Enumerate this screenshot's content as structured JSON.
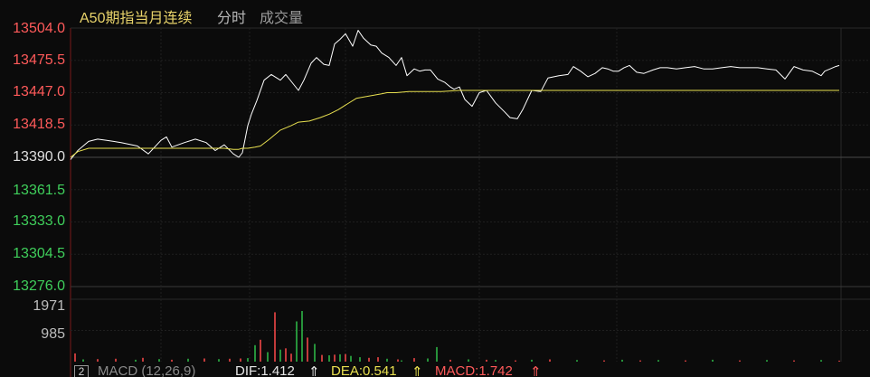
{
  "header": {
    "title": "A50期指当月连续",
    "tabs": [
      {
        "label": "分时"
      },
      {
        "label": "成交量"
      }
    ]
  },
  "price_axis": {
    "labels": [
      "13504.0",
      "13475.5",
      "13447.0",
      "13418.5",
      "13390.0",
      "13361.5",
      "13333.0",
      "13304.5",
      "13276.0"
    ],
    "up_color": "#ff5a5a",
    "ref_color": "#e0e0e0",
    "down_color": "#3fcf5b"
  },
  "volume_axis": {
    "labels": [
      "1971",
      "985"
    ]
  },
  "bottom_bar": {
    "period_button": "2",
    "macd_label": "MACD (12,26,9)",
    "dif_label": "DIF:1.412",
    "dea_label": "DEA:0.541",
    "macd_value_label": "MACD:1.742",
    "up_arrow": "⇑"
  },
  "chart_data": [
    {
      "type": "line",
      "series": [
        {
          "color": "#ffffff",
          "x": [
            0,
            8,
            20,
            30,
            40,
            56,
            74,
            86,
            100,
            106,
            112,
            126,
            138,
            150,
            160,
            170,
            180,
            186,
            190,
            196,
            200,
            206,
            214,
            222,
            232,
            238,
            244,
            252,
            258,
            266,
            272,
            280,
            286,
            292,
            298,
            304,
            312,
            318,
            324,
            332,
            338,
            344,
            352,
            360,
            366,
            372,
            380,
            386,
            392,
            398,
            406,
            414,
            420,
            424,
            430,
            436,
            444,
            452,
            460,
            470,
            480,
            486,
            494,
            500,
            510,
            520,
            528,
            540,
            550,
            556,
            564,
            572,
            580,
            588,
            594,
            600,
            606,
            612,
            618,
            626,
            634,
            644,
            652,
            660,
            670,
            680,
            690,
            700,
            710,
            720,
            730,
            740,
            750,
            760,
            770,
            780,
            790,
            800,
            810,
            820,
            830,
            834,
            840,
            846,
            850
          ],
          "y": [
            13388,
            13396,
            13404,
            13406,
            13405,
            13403,
            13400,
            13393,
            13405,
            13408,
            13399,
            13403,
            13406,
            13403,
            13396,
            13401,
            13393,
            13390,
            13394,
            13418,
            13428,
            13440,
            13458,
            13463,
            13458,
            13463,
            13457,
            13449,
            13458,
            13473,
            13478,
            13472,
            13471,
            13490,
            13494,
            13499,
            13488,
            13502,
            13495,
            13489,
            13488,
            13482,
            13478,
            13471,
            13478,
            13462,
            13468,
            13466,
            13467,
            13467,
            13459,
            13456,
            13452,
            13450,
            13452,
            13441,
            13435,
            13447,
            13449,
            13438,
            13430,
            13425,
            13424,
            13432,
            13449,
            13448,
            13460,
            13462,
            13463,
            13470,
            13466,
            13461,
            13464,
            13469,
            13468,
            13466,
            13466,
            13469,
            13471,
            13465,
            13464,
            13467,
            13469,
            13469,
            13468,
            13469,
            13470,
            13468,
            13468,
            13469,
            13470,
            13469,
            13469,
            13469,
            13468,
            13467,
            13459,
            13470,
            13467,
            13466,
            13462,
            13466,
            13468,
            13470,
            13471
          ]
        },
        {
          "color": "#e8e050",
          "x": [
            0,
            8,
            20,
            40,
            60,
            80,
            100,
            120,
            150,
            170,
            180,
            186,
            190,
            196,
            204,
            210,
            220,
            232,
            244,
            252,
            264,
            276,
            286,
            296,
            306,
            316,
            330,
            344,
            350,
            360,
            374,
            390,
            410,
            430,
            450,
            470,
            490,
            510,
            530,
            550,
            570,
            590,
            610,
            630,
            650,
            670,
            690,
            710,
            730,
            750,
            770,
            790,
            810,
            830,
            850
          ],
          "y": [
            13390,
            13395,
            13398,
            13398,
            13398,
            13398,
            13398,
            13398,
            13398,
            13398,
            13397,
            13397,
            13398,
            13398,
            13399,
            13400,
            13406,
            13414,
            13418,
            13421,
            13422,
            13425,
            13428,
            13432,
            13437,
            13442,
            13444,
            13446,
            13447,
            13447,
            13448,
            13448,
            13448,
            13449,
            13449,
            13449,
            13449,
            13449,
            13449,
            13449,
            13449,
            13449,
            13449,
            13449,
            13449,
            13449,
            13449,
            13449,
            13449,
            13449,
            13449,
            13449,
            13449,
            13449,
            13449
          ]
        }
      ],
      "ylim": [
        13276.0,
        13504.0
      ]
    },
    {
      "type": "bar",
      "x": [
        5,
        14,
        30,
        50,
        72,
        80,
        98,
        112,
        130,
        148,
        164,
        176,
        188,
        196,
        204,
        210,
        218,
        226,
        232,
        238,
        244,
        250,
        256,
        262,
        270,
        278,
        286,
        292,
        298,
        304,
        310,
        320,
        330,
        340,
        350,
        362,
        366,
        380,
        395,
        405,
        420,
        440,
        460,
        470,
        492,
        510,
        530,
        560,
        590,
        610,
        630,
        650,
        680,
        710,
        740,
        770,
        800,
        830,
        850
      ],
      "values": [
        260,
        70,
        80,
        90,
        60,
        120,
        80,
        60,
        90,
        100,
        80,
        90,
        100,
        110,
        520,
        690,
        300,
        1560,
        380,
        420,
        250,
        1270,
        1600,
        760,
        560,
        210,
        200,
        220,
        230,
        240,
        180,
        140,
        120,
        140,
        90,
        70,
        40,
        110,
        100,
        460,
        60,
        70,
        60,
        50,
        40,
        60,
        70,
        50,
        40,
        60,
        40,
        50,
        40,
        60,
        40,
        50,
        40,
        50,
        30
      ],
      "colors": [
        "r",
        "g",
        "r",
        "r",
        "g",
        "r",
        "g",
        "r",
        "g",
        "r",
        "g",
        "r",
        "r",
        "g",
        "g",
        "r",
        "g",
        "r",
        "g",
        "r",
        "r",
        "g",
        "g",
        "r",
        "g",
        "r",
        "g",
        "r",
        "g",
        "r",
        "g",
        "g",
        "r",
        "r",
        "g",
        "r",
        "g",
        "r",
        "g",
        "g",
        "r",
        "g",
        "r",
        "g",
        "r",
        "g",
        "r",
        "g",
        "r",
        "g",
        "r",
        "g",
        "r",
        "g",
        "r",
        "g",
        "r",
        "g",
        "r"
      ],
      "ylim": [
        0,
        1971
      ]
    }
  ]
}
